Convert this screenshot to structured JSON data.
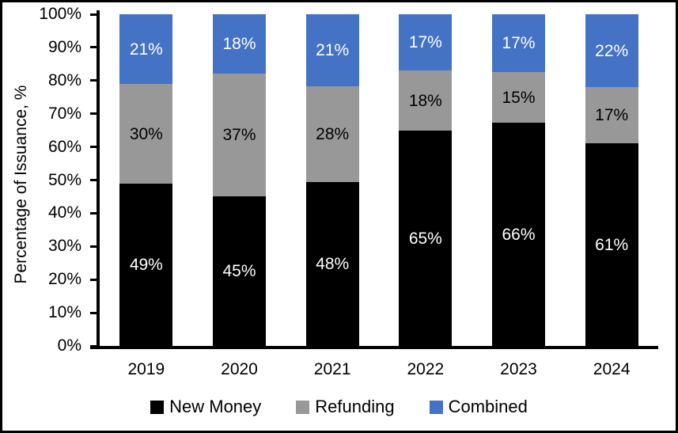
{
  "chart_data": {
    "type": "bar",
    "stacked": true,
    "title": "",
    "xlabel": "",
    "ylabel": "Percentage of Issuance, %",
    "categories": [
      "2019",
      "2020",
      "2021",
      "2022",
      "2023",
      "2024"
    ],
    "series": [
      {
        "name": "New Money",
        "color": "#000000",
        "label_color": "#ffffff",
        "values": [
          49,
          45,
          48,
          65,
          66,
          61
        ]
      },
      {
        "name": "Refunding",
        "color": "#989898",
        "label_color": "#000000",
        "values": [
          30,
          37,
          28,
          18,
          15,
          17
        ]
      },
      {
        "name": "Combined",
        "color": "#4472c4",
        "label_color": "#ffffff",
        "values": [
          21,
          18,
          21,
          17,
          17,
          22
        ]
      }
    ],
    "value_suffix": "%",
    "ylim": [
      0,
      100
    ],
    "y_ticks": [
      "0%",
      "10%",
      "20%",
      "30%",
      "40%",
      "50%",
      "60%",
      "70%",
      "80%",
      "90%",
      "100%"
    ],
    "y_tick_values": [
      0,
      10,
      20,
      30,
      40,
      50,
      60,
      70,
      80,
      90,
      100
    ],
    "grid": false,
    "legend_position": "bottom",
    "colors": {
      "axis": "#000000",
      "background": "#ffffff",
      "frame_border": "#000000"
    }
  }
}
